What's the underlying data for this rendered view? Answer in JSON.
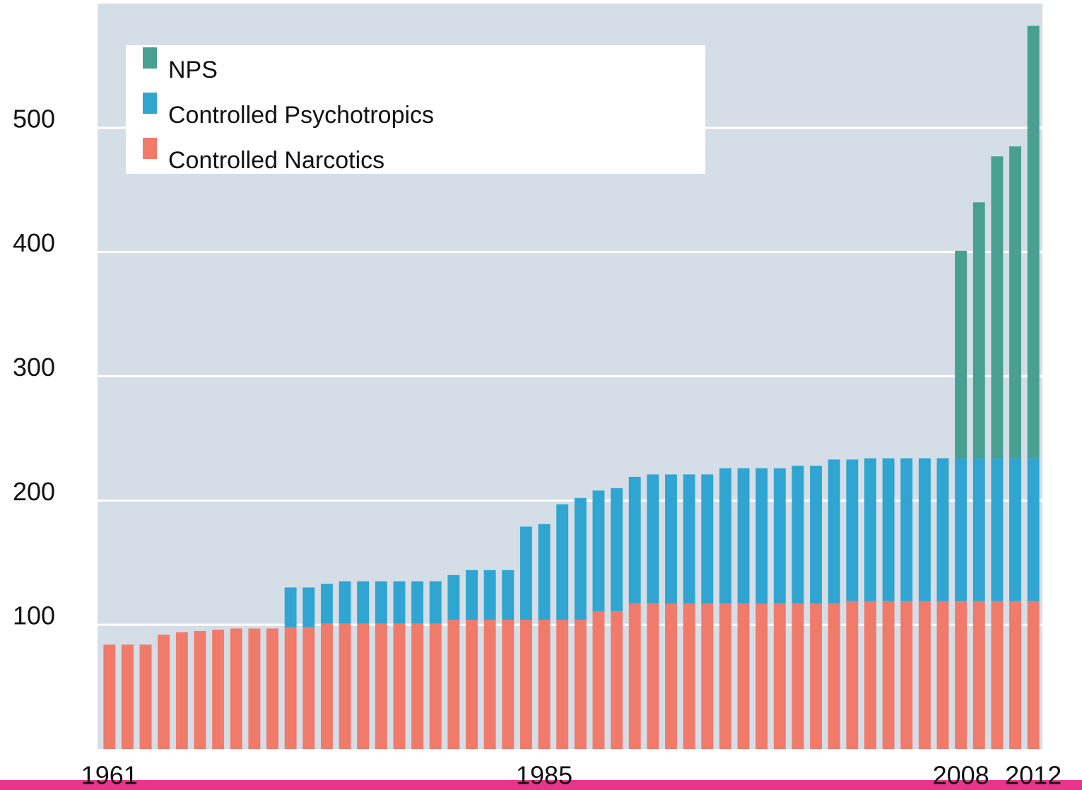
{
  "chart_data": {
    "type": "stacked-bar",
    "categories": [
      "1961",
      null,
      null,
      null,
      null,
      null,
      null,
      null,
      null,
      null,
      null,
      null,
      null,
      null,
      null,
      null,
      null,
      null,
      null,
      null,
      null,
      null,
      null,
      null,
      "1985",
      null,
      null,
      null,
      null,
      null,
      null,
      null,
      null,
      null,
      null,
      null,
      null,
      null,
      null,
      null,
      null,
      null,
      null,
      null,
      null,
      null,
      null,
      "2008",
      null,
      null,
      null,
      "2012"
    ],
    "series": [
      {
        "name": "Controlled Narcotics",
        "color": "#f07b6b",
        "values": [
          84,
          84,
          84,
          92,
          94,
          95,
          96,
          97,
          97,
          97,
          98,
          98,
          101,
          101,
          101,
          101,
          101,
          101,
          101,
          104,
          104,
          104,
          104,
          104,
          104,
          104,
          104,
          111,
          111,
          117,
          117,
          117,
          117,
          117,
          117,
          117,
          117,
          117,
          117,
          117,
          117,
          119,
          119,
          119,
          119,
          119,
          119,
          119,
          119,
          119,
          119,
          119
        ]
      },
      {
        "name": "Controlled Psychotropics",
        "color": "#30a5d1",
        "values": [
          null,
          null,
          null,
          null,
          null,
          null,
          null,
          null,
          null,
          null,
          32,
          32,
          32,
          34,
          34,
          34,
          34,
          34,
          34,
          36,
          40,
          40,
          40,
          75,
          77,
          93,
          98,
          97,
          99,
          102,
          104,
          104,
          104,
          104,
          109,
          109,
          109,
          109,
          111,
          111,
          116,
          114,
          115,
          115,
          115,
          115,
          115,
          115,
          115,
          115,
          115,
          115
        ]
      },
      {
        "name": "NPS",
        "color": "#48a090",
        "values": [
          null,
          null,
          null,
          null,
          null,
          null,
          null,
          null,
          null,
          null,
          null,
          null,
          null,
          null,
          null,
          null,
          null,
          null,
          null,
          null,
          null,
          null,
          null,
          null,
          null,
          null,
          null,
          null,
          null,
          null,
          null,
          null,
          null,
          null,
          null,
          null,
          null,
          null,
          null,
          null,
          null,
          null,
          null,
          null,
          null,
          null,
          null,
          167,
          206,
          243,
          251,
          348
        ]
      }
    ],
    "ylim": [
      0,
      600
    ],
    "yticks": [
      100,
      200,
      300,
      400,
      500
    ],
    "grid": true,
    "legend": "upper left"
  }
}
